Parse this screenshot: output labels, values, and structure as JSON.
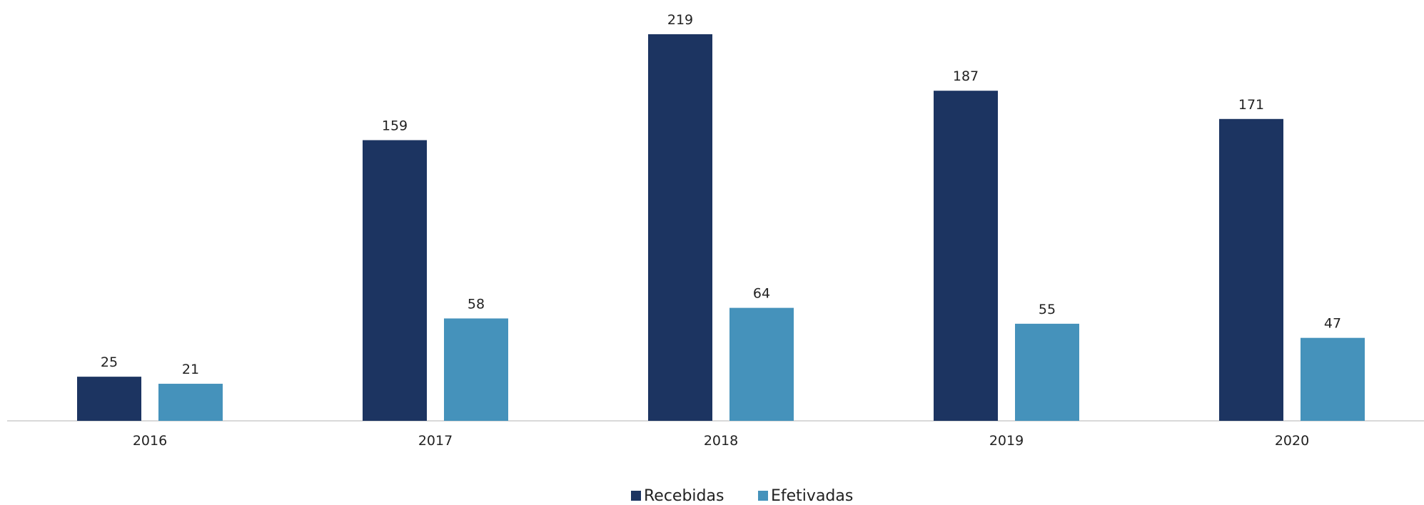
{
  "chart_data": {
    "type": "bar",
    "categories": [
      "2016",
      "2017",
      "2018",
      "2019",
      "2020"
    ],
    "series": [
      {
        "name": "Recebidas",
        "color": "#1c3461",
        "values": [
          25,
          159,
          219,
          187,
          171
        ]
      },
      {
        "name": "Efetivadas",
        "color": "#4592bb",
        "values": [
          21,
          58,
          64,
          55,
          47
        ]
      }
    ],
    "title": "",
    "xlabel": "",
    "ylabel": "",
    "ylim": [
      0,
      219
    ],
    "grid": false,
    "legend_position": "bottom-center",
    "data_labels": true
  }
}
